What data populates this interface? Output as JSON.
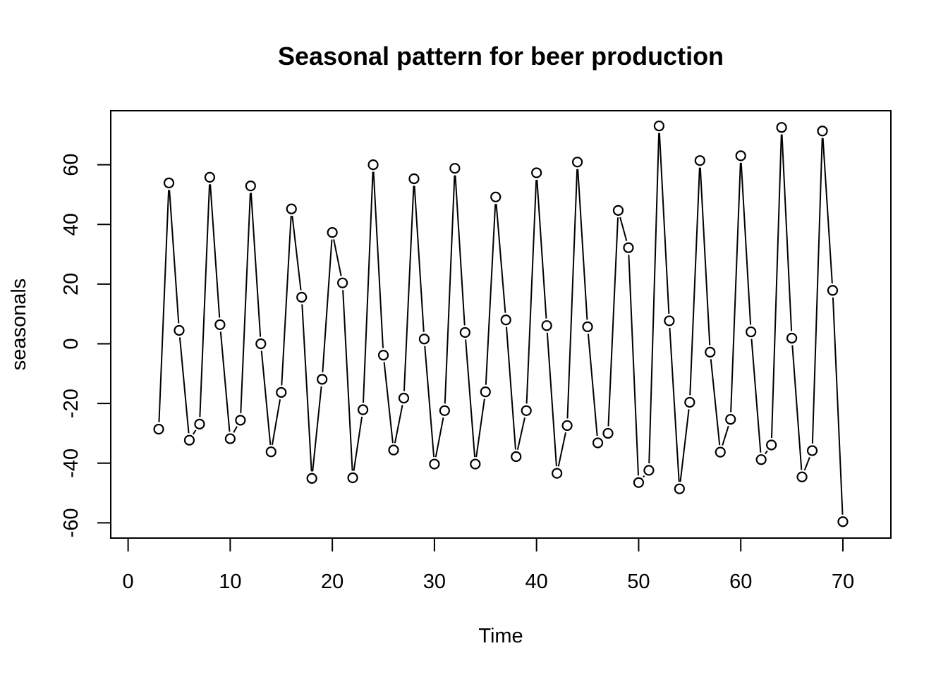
{
  "chart_data": {
    "type": "line",
    "title": "Seasonal pattern for beer production",
    "xlabel": "Time",
    "ylabel": "seasonals",
    "xlim": [
      -1.7,
      74.7
    ],
    "ylim": [
      -65.1,
      78.1
    ],
    "xticks": [
      0,
      10,
      20,
      30,
      40,
      50,
      60,
      70
    ],
    "yticks": [
      -60,
      -40,
      -20,
      0,
      20,
      40,
      60
    ],
    "style": "both points and lines (type=b)",
    "series": [
      {
        "x": [
          3,
          4,
          5,
          6,
          7,
          8,
          9,
          10,
          11,
          12,
          13,
          14,
          15,
          16,
          17,
          18,
          19,
          20,
          21,
          22,
          23,
          24,
          25,
          26,
          27,
          28,
          29,
          30,
          31,
          32,
          33,
          34,
          35,
          36,
          37,
          38,
          39,
          40,
          41,
          42,
          43,
          44,
          45,
          46,
          47,
          48,
          49,
          50,
          51,
          52,
          53,
          54,
          55,
          56,
          57,
          58,
          59,
          60,
          61,
          62,
          63,
          64,
          65,
          66,
          67,
          68,
          69,
          70
        ],
        "values": [
          -28.6,
          53.9,
          4.5,
          -32.3,
          -26.9,
          55.8,
          6.4,
          -31.8,
          -25.6,
          52.9,
          0,
          -36.2,
          -16.3,
          45.2,
          15.6,
          -45.1,
          -11.9,
          37.3,
          20.4,
          -44.9,
          -22.1,
          60,
          -3.8,
          -35.6,
          -18.2,
          55.3,
          1.6,
          -40.3,
          -22.4,
          58.8,
          3.8,
          -40.3,
          -16.1,
          49.2,
          8,
          -37.8,
          -22.4,
          57.3,
          6.1,
          -43.4,
          -27.4,
          60.9,
          5.7,
          -33.2,
          -30,
          44.7,
          32.2,
          -46.5,
          -42.4,
          73,
          7.7,
          -48.6,
          -19.6,
          61.4,
          -2.8,
          -36.3,
          -25.3,
          63,
          4,
          -38.8,
          -33.9,
          72.5,
          1.9,
          -44.6,
          -35.8,
          71.3,
          17.9,
          -59.6
        ]
      }
    ]
  }
}
